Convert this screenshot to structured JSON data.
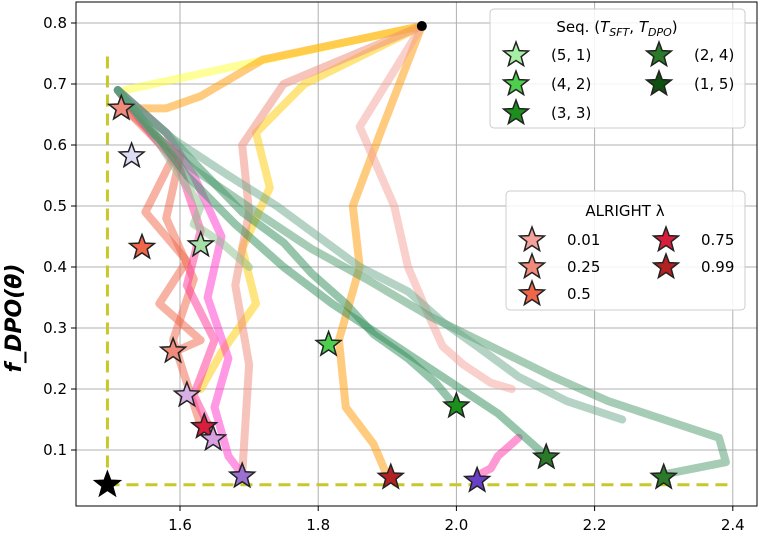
{
  "chart_data": {
    "type": "line",
    "ylabel": "f_DPO(θ)",
    "xlim": [
      1.46,
      2.44
    ],
    "ylim": [
      0.0,
      0.85
    ],
    "x_ticks": [
      "1.6",
      "1.8",
      "2.0",
      "2.2",
      "2.4"
    ],
    "y_ticks": [
      "0.1",
      "0.2",
      "0.3",
      "0.4",
      "0.5",
      "0.6",
      "0.7",
      "0.8"
    ],
    "grid": true,
    "start_point": {
      "x": 1.95,
      "y": 0.795
    },
    "ideal_point": {
      "x": 1.495,
      "y": 0.043
    },
    "legends": [
      {
        "title_main": "Seq. (",
        "title_T1": "T",
        "title_sub1": "SFT",
        "title_sep": ", ",
        "title_T2": "T",
        "title_sub2": "DPO",
        "title_end": ")",
        "position": "top-right",
        "entries": [
          {
            "label": "(5, 1)",
            "color": "#a6f0a6"
          },
          {
            "label": "(4, 2)",
            "color": "#4ccf4c"
          },
          {
            "label": "(3, 3)",
            "color": "#1c8f1c"
          },
          {
            "label": "(2, 4)",
            "color": "#2a7a2a"
          },
          {
            "label": "(1, 5)",
            "color": "#0f4f0f"
          }
        ]
      },
      {
        "title": "ALRIGHT λ",
        "position": "center-right",
        "entries": [
          {
            "label": "0.01",
            "color": "#f4a29a"
          },
          {
            "label": "0.25",
            "color": "#f08a7a"
          },
          {
            "label": "0.5",
            "color": "#f0664a"
          },
          {
            "label": "0.75",
            "color": "#d81e3c"
          },
          {
            "label": "0.99",
            "color": "#b22222"
          }
        ]
      }
    ],
    "series": [
      {
        "color": "#ffff33",
        "x": [
          1.95,
          1.52
        ],
        "y": [
          0.795,
          0.69
        ]
      },
      {
        "color": "#ff9900",
        "x": [
          1.95,
          1.72,
          1.63,
          1.58,
          1.52
        ],
        "y": [
          0.795,
          0.74,
          0.68,
          0.66,
          0.66
        ]
      },
      {
        "color": "#ff9900",
        "x": [
          1.95,
          1.89,
          1.85,
          1.86,
          1.83,
          1.84,
          1.88,
          1.9
        ],
        "y": [
          0.795,
          0.62,
          0.5,
          0.4,
          0.28,
          0.17,
          0.11,
          0.057
        ]
      },
      {
        "color": "#ffcc00",
        "x": [
          1.95,
          1.78,
          1.71,
          1.73,
          1.69,
          1.71,
          1.66,
          1.63
        ],
        "y": [
          0.795,
          0.7,
          0.62,
          0.53,
          0.43,
          0.34,
          0.26,
          0.2
        ]
      },
      {
        "color": "#f08a7a",
        "x": [
          1.95,
          1.75,
          1.69,
          1.7,
          1.68,
          1.7,
          1.69
        ],
        "y": [
          0.795,
          0.7,
          0.6,
          0.49,
          0.37,
          0.24,
          0.06
        ]
      },
      {
        "color": "#f4a29a",
        "x": [
          1.95,
          1.86,
          1.91,
          1.93,
          1.96,
          1.98,
          2.01,
          2.05,
          2.08
        ],
        "y": [
          0.795,
          0.63,
          0.5,
          0.4,
          0.32,
          0.27,
          0.24,
          0.21,
          0.2
        ]
      },
      {
        "color": "#f0664a",
        "x": [
          1.52,
          1.59,
          1.55,
          1.61,
          1.57,
          1.63,
          1.59
        ],
        "y": [
          0.66,
          0.58,
          0.49,
          0.41,
          0.34,
          0.28,
          0.26
        ]
      },
      {
        "color": "#f0664a",
        "x": [
          1.52,
          1.6,
          1.58,
          1.62,
          1.59,
          1.63
        ],
        "y": [
          0.66,
          0.58,
          0.48,
          0.38,
          0.28,
          0.14
        ]
      },
      {
        "color": "#ff3399",
        "x": [
          1.51,
          1.55,
          1.6,
          1.63,
          1.61,
          1.65,
          1.62,
          1.65
        ],
        "y": [
          0.69,
          0.63,
          0.56,
          0.46,
          0.37,
          0.28,
          0.19,
          0.12
        ]
      },
      {
        "color": "#ff33cc",
        "x": [
          1.51,
          1.58,
          1.62,
          1.66,
          1.64,
          1.67,
          1.65,
          1.67,
          1.69
        ],
        "y": [
          0.69,
          0.62,
          0.55,
          0.45,
          0.35,
          0.25,
          0.17,
          0.09,
          0.06
        ]
      },
      {
        "color": "#ff33aa",
        "x": [
          2.09,
          2.06,
          2.05,
          2.03
        ],
        "y": [
          0.12,
          0.09,
          0.07,
          0.058
        ]
      },
      {
        "color": "#8cbf8c",
        "x": [
          1.51,
          1.56,
          1.6,
          1.63,
          1.62,
          1.66,
          1.7
        ],
        "y": [
          0.69,
          0.62,
          0.55,
          0.5,
          0.47,
          0.44,
          0.4
        ]
      },
      {
        "color": "#2e8b57",
        "x": [
          1.51,
          1.58,
          1.63,
          1.69,
          1.75,
          1.79,
          1.84,
          1.88,
          1.93,
          1.97,
          2.0
        ],
        "y": [
          0.69,
          0.62,
          0.56,
          0.49,
          0.44,
          0.39,
          0.34,
          0.29,
          0.25,
          0.21,
          0.17
        ]
      },
      {
        "color": "#2e8b57",
        "x": [
          1.51,
          1.57,
          1.61,
          1.68,
          1.75,
          1.82,
          1.9,
          1.98,
          2.06,
          2.13
        ],
        "y": [
          0.69,
          0.61,
          0.55,
          0.47,
          0.4,
          0.34,
          0.28,
          0.22,
          0.16,
          0.09
        ]
      },
      {
        "color": "#4e9a6e",
        "x": [
          1.51,
          1.56,
          1.62,
          1.71,
          1.79,
          1.87,
          1.96,
          2.05,
          2.14,
          2.22,
          2.3,
          2.38,
          2.39,
          2.3
        ],
        "y": [
          0.69,
          0.62,
          0.56,
          0.49,
          0.43,
          0.38,
          0.32,
          0.27,
          0.22,
          0.18,
          0.15,
          0.12,
          0.08,
          0.06
        ]
      },
      {
        "color": "#6aa88a",
        "x": [
          1.51,
          1.59,
          1.67,
          1.74,
          1.8,
          1.86,
          1.93,
          1.98,
          2.03,
          2.09,
          2.16,
          2.24
        ],
        "y": [
          0.69,
          0.61,
          0.55,
          0.5,
          0.45,
          0.4,
          0.36,
          0.31,
          0.27,
          0.22,
          0.18,
          0.15
        ]
      }
    ],
    "markers": [
      {
        "x": 1.515,
        "y": 0.66,
        "color": "#f08a7a"
      },
      {
        "x": 1.53,
        "y": 0.582,
        "color": "#dcdcf5"
      },
      {
        "x": 1.545,
        "y": 0.432,
        "color": "#f0664a"
      },
      {
        "x": 1.63,
        "y": 0.436,
        "color": "#a6e0a6"
      },
      {
        "x": 1.59,
        "y": 0.262,
        "color": "#f08a7a"
      },
      {
        "x": 1.815,
        "y": 0.273,
        "color": "#4ccf4c"
      },
      {
        "x": 1.61,
        "y": 0.19,
        "color": "#d8b0e6"
      },
      {
        "x": 1.635,
        "y": 0.138,
        "color": "#d81e3c"
      },
      {
        "x": 1.648,
        "y": 0.118,
        "color": "#d8a0e0"
      },
      {
        "x": 2.0,
        "y": 0.172,
        "color": "#1c8f1c"
      },
      {
        "x": 1.69,
        "y": 0.057,
        "color": "#9a70d0"
      },
      {
        "x": 1.905,
        "y": 0.055,
        "color": "#b22222"
      },
      {
        "x": 2.03,
        "y": 0.05,
        "color": "#6a3fc8"
      },
      {
        "x": 2.13,
        "y": 0.088,
        "color": "#2a7a2a"
      },
      {
        "x": 2.3,
        "y": 0.055,
        "color": "#2a7a2a"
      }
    ]
  }
}
